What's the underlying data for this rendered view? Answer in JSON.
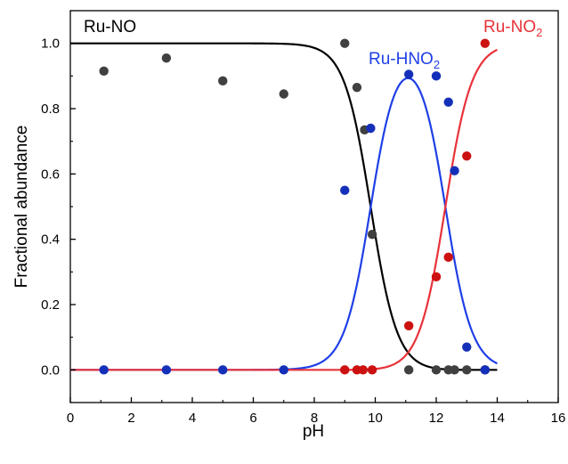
{
  "chart_data": {
    "type": "scatter",
    "xlabel": "pH",
    "ylabel": "Fractional abundance",
    "xlim": [
      0,
      16
    ],
    "ylim": [
      -0.1,
      1.1
    ],
    "xticks": [
      0,
      2,
      4,
      6,
      8,
      10,
      12,
      14,
      16
    ],
    "yticks": [
      0.0,
      0.2,
      0.4,
      0.6,
      0.8,
      1.0
    ],
    "xtick_labels": [
      "0",
      "2",
      "4",
      "6",
      "8",
      "10",
      "12",
      "14",
      "16"
    ],
    "ytick_labels": [
      "0.0",
      "0.2",
      "0.4",
      "0.6",
      "0.8",
      "1.0"
    ],
    "grid": false,
    "series": [
      {
        "name": "Ru-NO",
        "label_main": "Ru-NO",
        "label_sub": "",
        "color": "#000000",
        "point_color": "#404040",
        "points": [
          [
            1.1,
            0.915
          ],
          [
            3.15,
            0.955
          ],
          [
            5.0,
            0.885
          ],
          [
            7.0,
            0.845
          ],
          [
            9.0,
            1.0
          ],
          [
            9.4,
            0.865
          ],
          [
            9.65,
            0.735
          ],
          [
            9.9,
            0.415
          ],
          [
            11.1,
            0.0
          ],
          [
            12.0,
            0.0
          ],
          [
            12.4,
            0.0
          ],
          [
            12.6,
            0.0
          ],
          [
            13.0,
            0.0
          ],
          [
            13.6,
            0.0
          ]
        ],
        "curve": {
          "model": "species1",
          "x_range": [
            0,
            14
          ]
        }
      },
      {
        "name": "Ru-HNO2",
        "label_main": "Ru-HNO",
        "label_sub": "2",
        "color": "#1f3fe6",
        "point_color": "#1530b8",
        "points": [
          [
            1.1,
            0.0
          ],
          [
            3.15,
            0.0
          ],
          [
            5.0,
            0.0
          ],
          [
            7.0,
            0.0
          ],
          [
            9.0,
            0.55
          ],
          [
            9.85,
            0.74
          ],
          [
            11.1,
            0.905
          ],
          [
            12.0,
            0.9
          ],
          [
            12.4,
            0.82
          ],
          [
            12.6,
            0.61
          ],
          [
            13.0,
            0.07
          ],
          [
            13.6,
            0.0
          ]
        ],
        "curve": {
          "model": "species2",
          "x_range": [
            0,
            14
          ]
        }
      },
      {
        "name": "Ru-NO2",
        "label_main": "Ru-NO",
        "label_sub": "2",
        "color": "#e8323a",
        "point_color": "#cc1111",
        "points": [
          [
            9.0,
            0.0
          ],
          [
            9.4,
            0.0
          ],
          [
            9.6,
            0.0
          ],
          [
            9.9,
            0.0
          ],
          [
            11.1,
            0.135
          ],
          [
            12.0,
            0.285
          ],
          [
            12.4,
            0.345
          ],
          [
            13.0,
            0.655
          ],
          [
            13.6,
            1.0
          ]
        ],
        "curve": {
          "model": "species3",
          "x_range": [
            0,
            14
          ]
        }
      }
    ],
    "curve_parameters": {
      "pKa1": 9.85,
      "pKa2": 12.3
    }
  }
}
